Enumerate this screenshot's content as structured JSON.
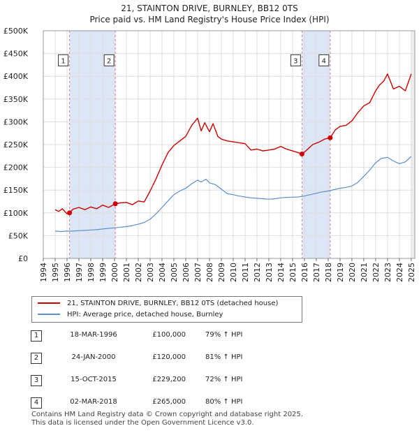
{
  "title": "21, STAINTON DRIVE, BURNLEY, BB12 0TS",
  "subtitle": "Price paid vs. HM Land Registry's House Price Index (HPI)",
  "colors": {
    "property": "#cc0000",
    "hpi": "#5b8fcf",
    "shade": "#dde6f7",
    "grid": "#dddddd",
    "sale_line": "#e08080"
  },
  "legend": {
    "property_label": "21, STAINTON DRIVE, BURNLEY, BB12 0TS (detached house)",
    "hpi_label": "HPI: Average price, detached house, Burnley"
  },
  "sales": [
    {
      "num": "1",
      "date": "18-MAR-1996",
      "price": "£100,000",
      "hpi": "79% ↑ HPI"
    },
    {
      "num": "2",
      "date": "24-JAN-2000",
      "price": "£120,000",
      "hpi": "81% ↑ HPI"
    },
    {
      "num": "3",
      "date": "15-OCT-2015",
      "price": "£229,200",
      "hpi": "72% ↑ HPI"
    },
    {
      "num": "4",
      "date": "02-MAR-2018",
      "price": "£265,000",
      "hpi": "80% ↑ HPI"
    }
  ],
  "footer": {
    "line1": "Contains HM Land Registry data © Crown copyright and database right 2025.",
    "line2": "This data is licensed under the Open Government Licence v3.0."
  },
  "chart_data": {
    "type": "line",
    "title": "21, STAINTON DRIVE, BURNLEY, BB12 0TS",
    "subtitle": "Price paid vs. HM Land Registry's House Price Index (HPI)",
    "xlabel": "",
    "ylabel": "",
    "xlim": [
      1994,
      2025.3
    ],
    "ylim": [
      0,
      500000
    ],
    "x_ticks": [
      1994,
      1995,
      1996,
      1997,
      1998,
      1999,
      2000,
      2001,
      2002,
      2003,
      2004,
      2005,
      2006,
      2007,
      2008,
      2009,
      2010,
      2011,
      2012,
      2013,
      2014,
      2015,
      2016,
      2017,
      2018,
      2019,
      2020,
      2021,
      2022,
      2023,
      2024,
      2025
    ],
    "y_ticks": [
      {
        "value": 0,
        "label": "£0"
      },
      {
        "value": 50000,
        "label": "£50K"
      },
      {
        "value": 100000,
        "label": "£100K"
      },
      {
        "value": 150000,
        "label": "£150K"
      },
      {
        "value": 200000,
        "label": "£200K"
      },
      {
        "value": 250000,
        "label": "£250K"
      },
      {
        "value": 300000,
        "label": "£300K"
      },
      {
        "value": 350000,
        "label": "£350K"
      },
      {
        "value": 400000,
        "label": "£400K"
      },
      {
        "value": 450000,
        "label": "£450K"
      },
      {
        "value": 500000,
        "label": "£500K"
      }
    ],
    "grid": true,
    "shaded_spans": [
      [
        1996.21,
        2000.07
      ],
      [
        2015.79,
        2018.17
      ]
    ],
    "series": [
      {
        "name": "21, STAINTON DRIVE, BURNLEY, BB12 0TS (detached house)",
        "x": [
          1995.0,
          1995.3,
          1995.6,
          1996.0,
          1996.21,
          1996.5,
          1997.0,
          1997.5,
          1998.0,
          1998.5,
          1999.0,
          1999.5,
          2000.07,
          2000.5,
          2001.0,
          2001.5,
          2002.0,
          2002.5,
          2003.0,
          2003.5,
          2004.0,
          2004.5,
          2005.0,
          2005.5,
          2006.0,
          2006.5,
          2007.0,
          2007.3,
          2007.6,
          2008.0,
          2008.3,
          2008.7,
          2009.0,
          2009.5,
          2010.0,
          2010.5,
          2011.0,
          2011.5,
          2012.0,
          2012.5,
          2013.0,
          2013.5,
          2014.0,
          2014.5,
          2015.0,
          2015.5,
          2015.79,
          2016.2,
          2016.7,
          2017.2,
          2017.7,
          2018.17,
          2018.6,
          2019.0,
          2019.5,
          2020.0,
          2020.5,
          2021.0,
          2021.5,
          2022.0,
          2022.3,
          2022.7,
          2023.0,
          2023.5,
          2024.0,
          2024.5,
          2025.0
        ],
        "values": [
          107000,
          103000,
          109000,
          98000,
          100000,
          108000,
          112000,
          107000,
          113000,
          109000,
          117000,
          112000,
          120000,
          122000,
          123000,
          118000,
          126000,
          124000,
          148000,
          175000,
          205000,
          232000,
          248000,
          258000,
          268000,
          292000,
          308000,
          280000,
          298000,
          278000,
          296000,
          268000,
          262000,
          258000,
          256000,
          254000,
          252000,
          238000,
          240000,
          236000,
          238000,
          240000,
          246000,
          240000,
          236000,
          232000,
          229200,
          238000,
          250000,
          255000,
          262000,
          265000,
          282000,
          290000,
          292000,
          302000,
          320000,
          335000,
          342000,
          368000,
          380000,
          390000,
          405000,
          372000,
          378000,
          368000,
          405000
        ]
      },
      {
        "name": "HPI: Average price, detached house, Burnley",
        "x": [
          1995.0,
          1995.5,
          1996.0,
          1996.5,
          1997.0,
          1997.5,
          1998.0,
          1998.5,
          1999.0,
          1999.5,
          2000.0,
          2000.5,
          2001.0,
          2001.5,
          2002.0,
          2002.5,
          2003.0,
          2003.5,
          2004.0,
          2004.5,
          2005.0,
          2005.5,
          2006.0,
          2006.5,
          2007.0,
          2007.3,
          2007.7,
          2008.0,
          2008.5,
          2009.0,
          2009.5,
          2010.0,
          2010.5,
          2011.0,
          2011.5,
          2012.0,
          2012.5,
          2013.0,
          2013.5,
          2014.0,
          2014.5,
          2015.0,
          2015.5,
          2016.0,
          2016.5,
          2017.0,
          2017.5,
          2018.0,
          2018.5,
          2019.0,
          2019.5,
          2020.0,
          2020.5,
          2021.0,
          2021.5,
          2022.0,
          2022.5,
          2023.0,
          2023.5,
          2024.0,
          2024.5,
          2025.0
        ],
        "values": [
          60000,
          59000,
          60000,
          60000,
          61000,
          61500,
          62500,
          63000,
          64500,
          66000,
          67000,
          68500,
          70000,
          72000,
          75000,
          79000,
          86000,
          98000,
          112000,
          126000,
          140000,
          148000,
          154000,
          164000,
          172000,
          168000,
          174000,
          166000,
          162000,
          152000,
          142000,
          140000,
          137000,
          135000,
          133000,
          132000,
          131000,
          130000,
          131000,
          133000,
          134000,
          134500,
          135000,
          137000,
          140000,
          143000,
          146000,
          148000,
          151000,
          154000,
          156000,
          159000,
          167000,
          180000,
          194000,
          210000,
          220000,
          222000,
          214000,
          208000,
          212000,
          224000
        ]
      }
    ],
    "sale_points": [
      {
        "label": "1",
        "x": 1996.21,
        "value": 100000
      },
      {
        "label": "2",
        "x": 2000.07,
        "value": 120000
      },
      {
        "label": "3",
        "x": 2015.79,
        "value": 229200
      },
      {
        "label": "4",
        "x": 2018.17,
        "value": 265000
      }
    ],
    "sale_marker_level": 435000
  }
}
